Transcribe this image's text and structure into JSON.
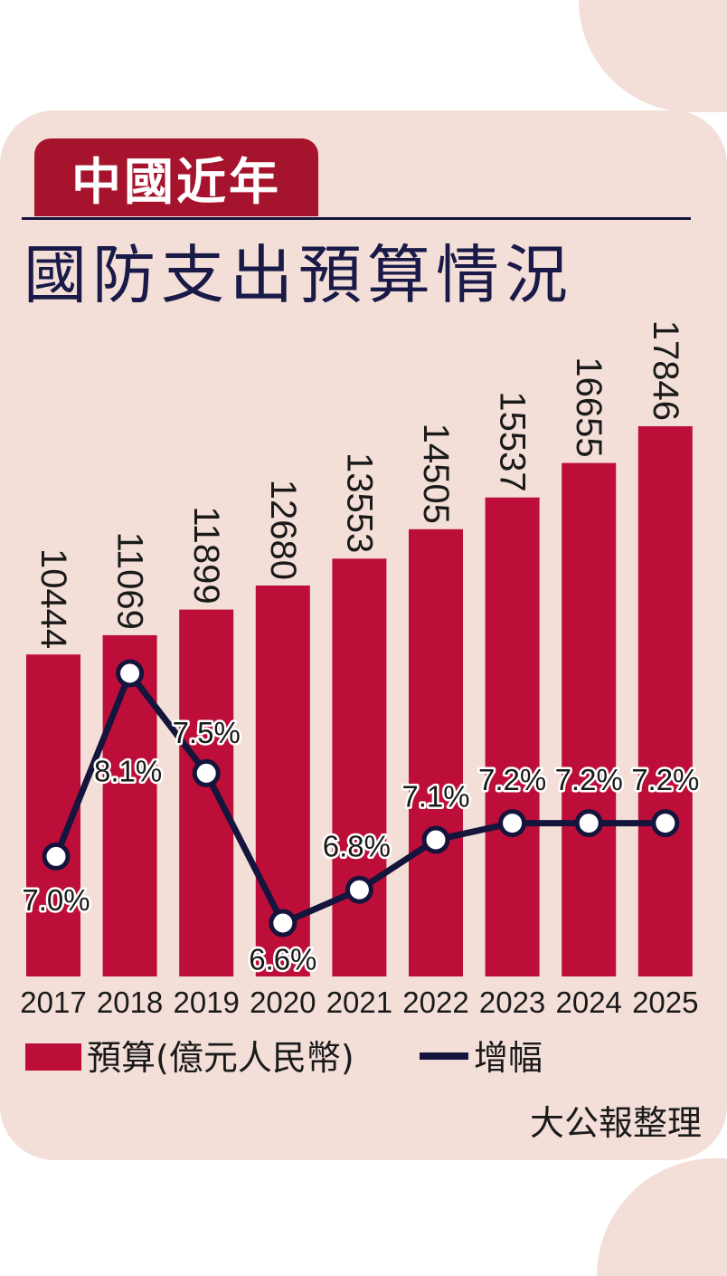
{
  "header": {
    "tag": "中國近年",
    "title": "國防支出預算情況"
  },
  "chart_data": {
    "type": "bar",
    "categories": [
      "2017",
      "2018",
      "2019",
      "2020",
      "2021",
      "2022",
      "2023",
      "2024",
      "2025"
    ],
    "series": [
      {
        "name": "預算(億元人民幣)",
        "type": "bar",
        "values": [
          10444,
          11069,
          11899,
          12680,
          13553,
          14505,
          15537,
          16655,
          17846
        ],
        "labels": [
          "10444",
          "11069",
          "11899",
          "12680",
          "13553",
          "14505",
          "15537",
          "16655",
          "17846"
        ],
        "color": "#bd0e39"
      },
      {
        "name": "增幅",
        "type": "line",
        "values": [
          7.0,
          8.1,
          7.5,
          6.6,
          6.8,
          7.1,
          7.2,
          7.2,
          7.2
        ],
        "labels": [
          "7.0%",
          "8.1%",
          "7.5%",
          "6.6%",
          "6.8%",
          "7.1%",
          "7.2%",
          "7.2%",
          "7.2%"
        ],
        "color": "#14143c"
      }
    ],
    "bar_ylim": [
      0,
      17846
    ],
    "line_ylim": [
      6.6,
      8.1
    ],
    "legend_position": "bottom-left",
    "grid": false
  },
  "source": "大公報整理",
  "colors": {
    "background": "#f3dfd8",
    "accent": "#a6132d",
    "bar": "#bd0e39",
    "line": "#14143c",
    "title": "#1a1a48"
  }
}
